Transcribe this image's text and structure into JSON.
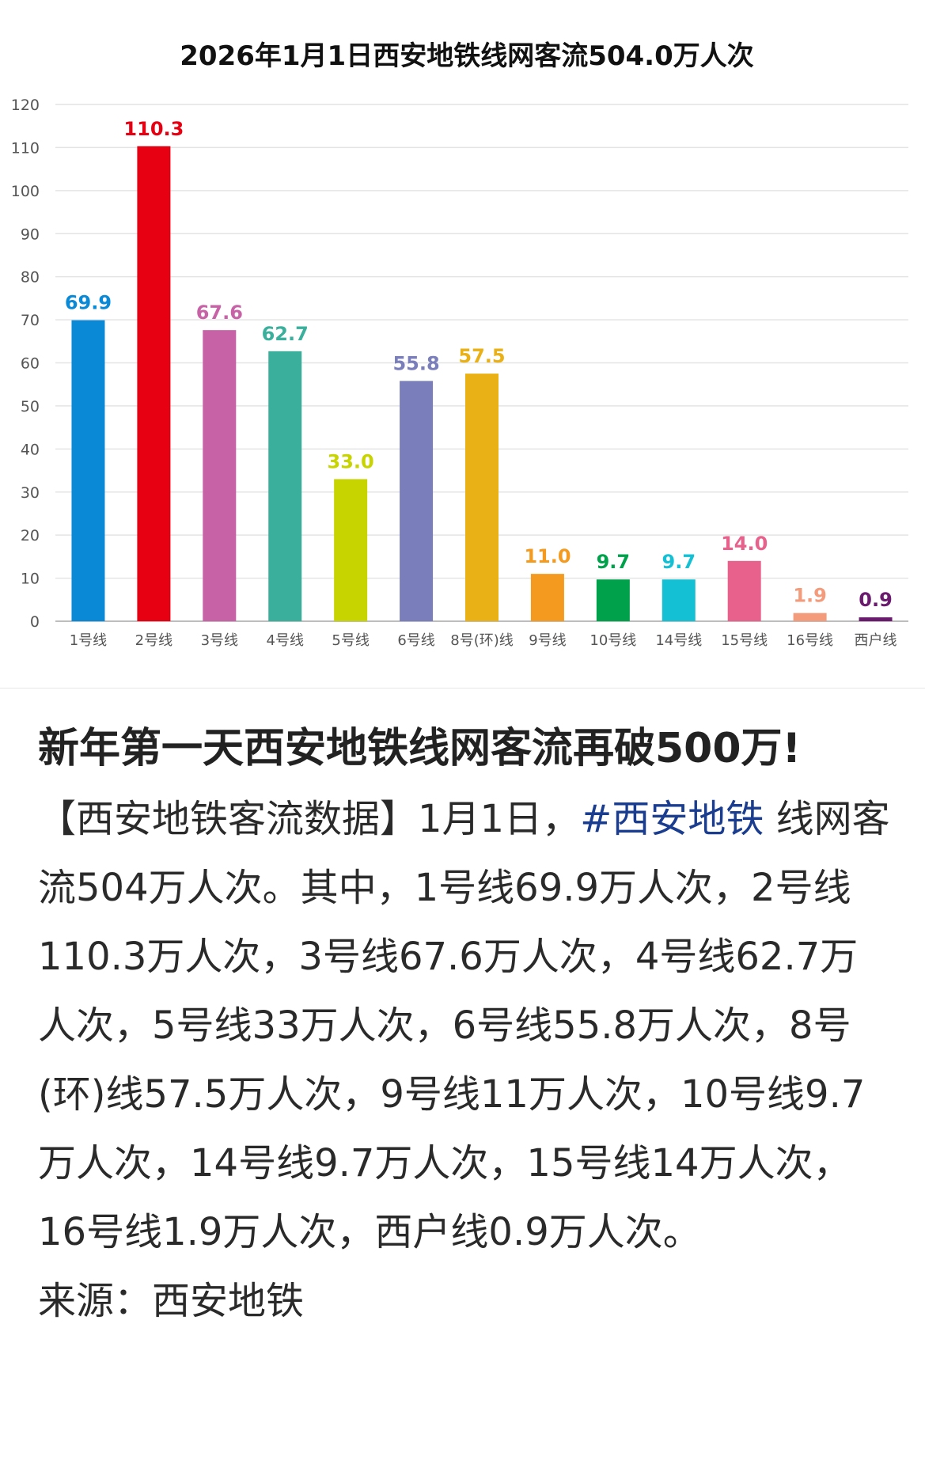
{
  "chart_data": {
    "type": "bar",
    "title": "2026年1月1日西安地铁线网客流504.0万人次",
    "categories": [
      "1号线",
      "2号线",
      "3号线",
      "4号线",
      "5号线",
      "6号线",
      "8号(环)线",
      "9号线",
      "10号线",
      "14号线",
      "15号线",
      "16号线",
      "西户线"
    ],
    "values": [
      69.9,
      110.3,
      67.6,
      62.7,
      33.0,
      55.8,
      57.5,
      11.0,
      9.7,
      9.7,
      14.0,
      1.9,
      0.9
    ],
    "value_labels": [
      "69.9",
      "110.3",
      "67.6",
      "62.7",
      "33.0",
      "55.8",
      "57.5",
      "11.0",
      "9.7",
      "9.7",
      "14.0",
      "1.9",
      "0.9"
    ],
    "colors": [
      "#0a8ad6",
      "#e60012",
      "#c862a6",
      "#3aaf9c",
      "#c8d400",
      "#7a7eba",
      "#e9b116",
      "#f39a1f",
      "#00a14b",
      "#14c0d4",
      "#e8618c",
      "#f39b7a",
      "#6a1b6e"
    ],
    "ylim": [
      0,
      120
    ],
    "yticks": [
      0,
      10,
      20,
      30,
      40,
      50,
      60,
      70,
      80,
      90,
      100,
      110,
      120
    ],
    "grid": true,
    "xlabel": "",
    "ylabel": ""
  },
  "post": {
    "headline": "新年第一天西安地铁线网客流再破500万!",
    "body_prefix": "【西安地铁客流数据】1月1日，",
    "hashtag": "#西安地铁",
    "body_rest": " 线网客流504万人次。其中，1号线69.9万人次，2号线110.3万人次，3号线67.6万人次，4号线62.7万人次，5号线33万人次，6号线55.8万人次，8号(环)线57.5万人次，9号线11万人次，10号线9.7万人次，14号线9.7万人次，15号线14万人次，16号线1.9万人次，西户线0.9万人次。",
    "source": "来源：西安地铁"
  }
}
